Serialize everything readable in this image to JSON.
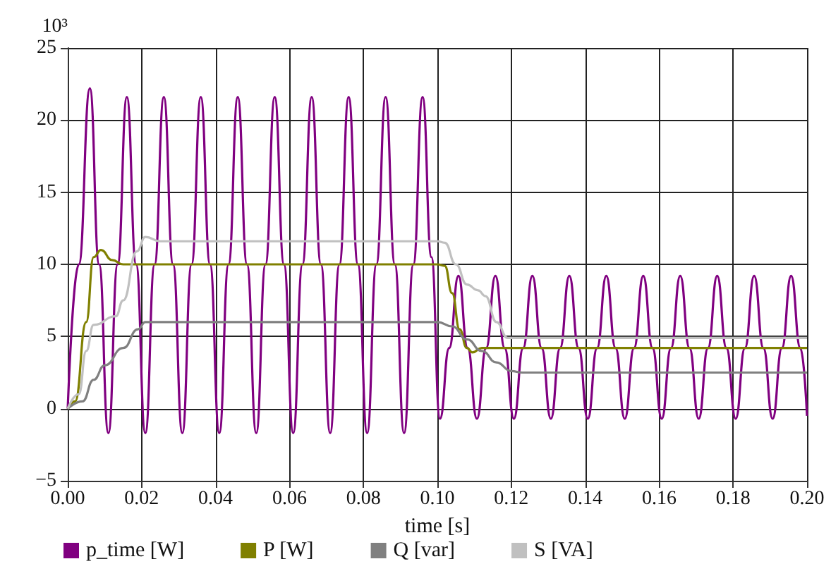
{
  "chart_data": {
    "type": "line",
    "xlabel": "time [s]",
    "ylabel": "10³",
    "xlim": [
      0,
      0.2
    ],
    "xticks": [
      {
        "value": 0,
        "label": "0.00"
      },
      {
        "value": 0.02,
        "label": "0.02"
      },
      {
        "value": 0.04,
        "label": "0.04"
      },
      {
        "value": 0.06,
        "label": "0.06"
      },
      {
        "value": 0.08,
        "label": "0.08"
      },
      {
        "value": 0.1,
        "label": "0.10"
      },
      {
        "value": 0.12,
        "label": "0.12"
      },
      {
        "value": 0.14,
        "label": "0.14"
      },
      {
        "value": 0.16,
        "label": "0.16"
      },
      {
        "value": 0.18,
        "label": "0.18"
      },
      {
        "value": 0.2,
        "label": "0.20"
      }
    ],
    "ylim": [
      -5,
      25
    ],
    "yticks": [
      {
        "value": -5,
        "label": "−5"
      },
      0,
      5,
      10,
      15,
      20,
      25
    ],
    "grid": true,
    "legend": "bottom",
    "marker": "none",
    "line_style": "solid",
    "series": [
      {
        "name": "p_time [W]",
        "color": "#800080",
        "x": [
          0,
          0.003,
          0.006,
          0.0085,
          0.011,
          0.0135,
          0.016,
          0.0185,
          0.021,
          0.0235,
          0.026,
          0.0285,
          0.031,
          0.0335,
          0.036,
          0.0385,
          0.041,
          0.0435,
          0.046,
          0.0485,
          0.051,
          0.0535,
          0.056,
          0.0585,
          0.061,
          0.0635,
          0.066,
          0.0685,
          0.071,
          0.0735,
          0.076,
          0.0785,
          0.081,
          0.0835,
          0.086,
          0.0885,
          0.091,
          0.0935,
          0.096,
          0.0984,
          0.1007,
          0.1032,
          0.1057,
          0.1082,
          0.1107,
          0.1132,
          0.1157,
          0.1182,
          0.1207,
          0.1232,
          0.1257,
          0.1282,
          0.1307,
          0.1332,
          0.1357,
          0.1382,
          0.1407,
          0.1432,
          0.1457,
          0.1482,
          0.1507,
          0.1532,
          0.1557,
          0.1582,
          0.1607,
          0.1632,
          0.1657,
          0.1682,
          0.1707,
          0.1732,
          0.1757,
          0.1782,
          0.1807,
          0.1832,
          0.1857,
          0.1882,
          0.1907,
          0.1932,
          0.1957,
          0.1982,
          0.2
        ],
        "values": [
          0,
          10,
          22.2,
          10,
          -1.7,
          10,
          21.6,
          10,
          -1.7,
          10,
          21.6,
          10,
          -1.7,
          10,
          21.6,
          10,
          -1.7,
          10,
          21.6,
          10,
          -1.7,
          10,
          21.6,
          10,
          -1.7,
          10,
          21.6,
          10,
          -1.7,
          10,
          21.6,
          10,
          -1.7,
          10,
          21.6,
          10,
          -1.7,
          10,
          21.6,
          10.5,
          -0.7,
          4.2,
          9.2,
          4.2,
          -0.7,
          4.2,
          9.2,
          4.2,
          -0.7,
          4.2,
          9.2,
          4.2,
          -0.7,
          4.2,
          9.2,
          4.2,
          -0.7,
          4.2,
          9.2,
          4.2,
          -0.7,
          4.2,
          9.2,
          4.2,
          -0.7,
          4.2,
          9.2,
          4.2,
          -0.7,
          4.2,
          9.2,
          4.2,
          -0.7,
          4.2,
          9.2,
          4.2,
          -0.7,
          4.2,
          9.2,
          4.2,
          -0.5
        ]
      },
      {
        "name": "P [W]",
        "color": "#808000",
        "x": [
          0,
          0.002,
          0.005,
          0.007,
          0.009,
          0.012,
          0.015,
          0.1,
          0.102,
          0.104,
          0.106,
          0.108,
          0.1095,
          0.112,
          0.2
        ],
        "values": [
          0,
          0.5,
          6,
          10.5,
          11,
          10.3,
          10,
          10,
          9.9,
          8,
          5.5,
          4.2,
          3.9,
          4.2,
          4.2
        ]
      },
      {
        "name": "Q [var]",
        "color": "#808080",
        "x": [
          0,
          0.004,
          0.007,
          0.01,
          0.015,
          0.019,
          0.021,
          0.1,
          0.104,
          0.108,
          0.112,
          0.116,
          0.12,
          0.123,
          0.2
        ],
        "values": [
          0,
          0.5,
          2,
          3,
          4.2,
          5.5,
          6,
          6,
          5.7,
          4.8,
          4,
          3.2,
          2.6,
          2.5,
          2.5
        ]
      },
      {
        "name": "S [VA]",
        "color": "#c0c0c0",
        "x": [
          0,
          0.003,
          0.005,
          0.007,
          0.013,
          0.015,
          0.0187,
          0.021,
          0.025,
          0.1,
          0.102,
          0.105,
          0.108,
          0.111,
          0.113,
          0.116,
          0.119,
          0.2
        ],
        "values": [
          0,
          1,
          4,
          5.8,
          6.4,
          7.5,
          10.9,
          11.9,
          11.6,
          11.6,
          11.5,
          10,
          8.6,
          8.2,
          7.8,
          6,
          4.9,
          4.9
        ]
      }
    ]
  }
}
